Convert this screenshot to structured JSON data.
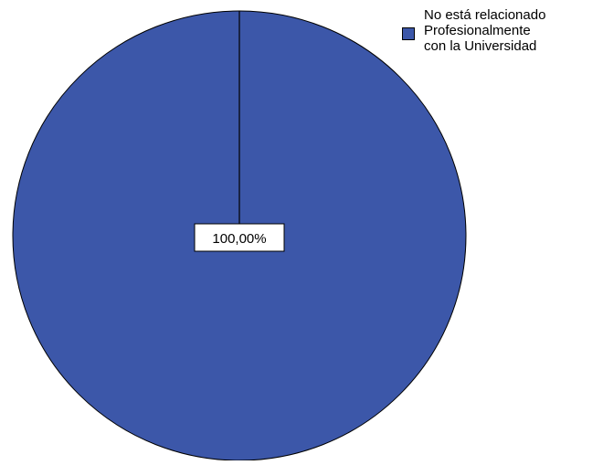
{
  "chart_data": {
    "type": "pie",
    "title": "",
    "categories": [
      "No está relacionado\nProfesionalmente\ncon la Universidad"
    ],
    "values": [
      100
    ],
    "data_labels": [
      "100,00%"
    ],
    "legend_position": "top-right",
    "colors": {
      "slice": "#3C57A9",
      "edge": "#000000",
      "label_bg": "#ffffff",
      "background": "#ffffff"
    }
  }
}
